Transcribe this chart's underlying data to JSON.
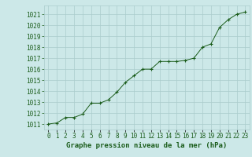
{
  "x": [
    0,
    1,
    2,
    3,
    4,
    5,
    6,
    7,
    8,
    9,
    10,
    11,
    12,
    13,
    14,
    15,
    16,
    17,
    18,
    19,
    20,
    21,
    22,
    23
  ],
  "y": [
    1011.0,
    1011.1,
    1011.6,
    1011.6,
    1011.9,
    1012.9,
    1012.9,
    1013.2,
    1013.9,
    1014.8,
    1015.4,
    1016.0,
    1016.0,
    1016.7,
    1016.7,
    1016.7,
    1016.8,
    1017.0,
    1018.0,
    1018.3,
    1019.8,
    1020.5,
    1021.0,
    1021.2
  ],
  "line_color": "#1a5c1a",
  "marker_color": "#1a5c1a",
  "bg_color": "#cce8e8",
  "grid_color": "#aacccc",
  "xlabel": "Graphe pression niveau de la mer (hPa)",
  "xlabel_fontsize": 6.5,
  "tick_fontsize": 5.5,
  "ylim_min": 1010.5,
  "ylim_max": 1021.8,
  "xlim_min": -0.5,
  "xlim_max": 23.5,
  "ytick_start": 1011,
  "ytick_end": 1021
}
